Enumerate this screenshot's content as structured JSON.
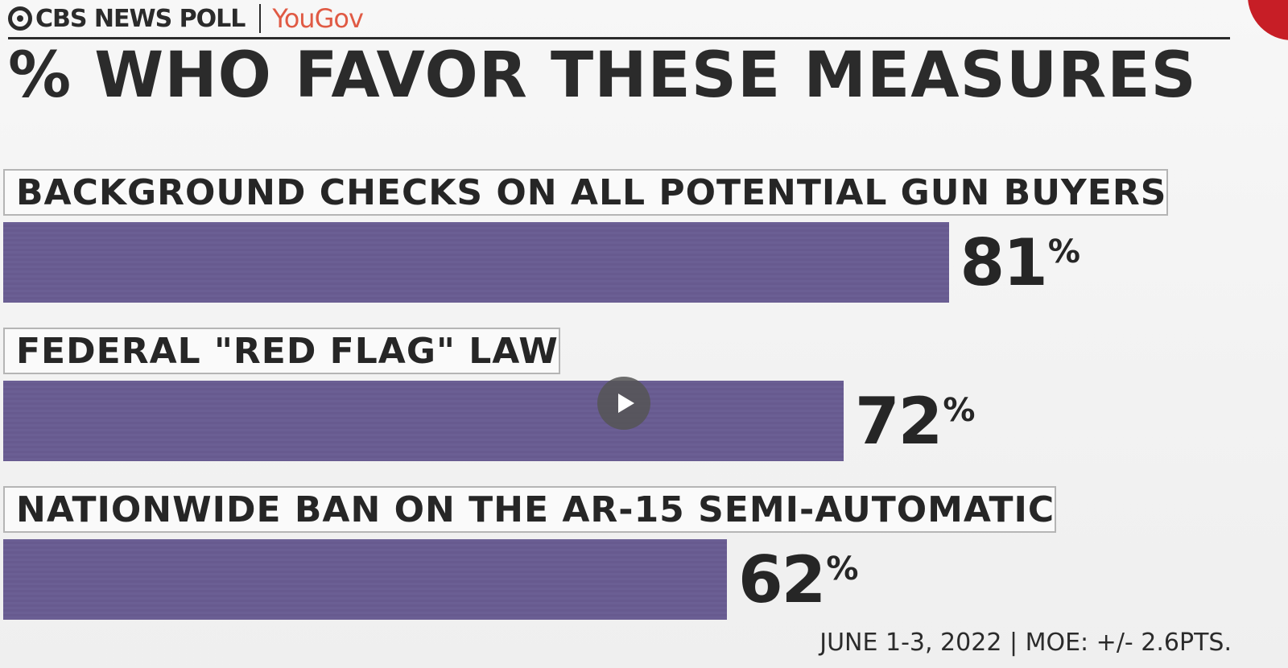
{
  "header": {
    "brand": "CBS NEWS POLL",
    "partner": "YouGov",
    "logo_icon": "cbs-eye-icon"
  },
  "chart_data": {
    "type": "bar",
    "orientation": "horizontal",
    "title": "% WHO FAVOR THESE MEASURES",
    "categories": [
      "BACKGROUND CHECKS ON ALL POTENTIAL GUN BUYERS",
      "FEDERAL \"RED FLAG\" LAW",
      "NATIONWIDE BAN ON THE AR-15 SEMI-AUTOMATIC"
    ],
    "values": [
      81,
      72,
      62
    ],
    "value_suffix": "%",
    "xlim": [
      0,
      100
    ],
    "grid": false,
    "legend": "none",
    "bar_color": "#6b5f94"
  },
  "footer": "JUNE 1-3, 2022 | MOE: +/- 2.6PTS.",
  "overlay": {
    "play_icon": "play-icon"
  },
  "colors": {
    "accent": "#c4121a",
    "partner": "#e05a44",
    "text": "#2b2b2b"
  }
}
